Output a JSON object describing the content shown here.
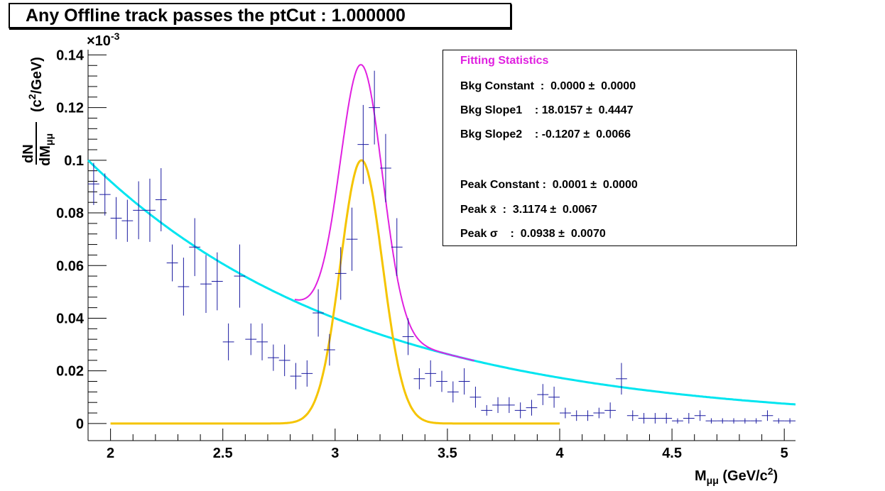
{
  "title": "Any Offline track passes the ptCut : 1.000000",
  "stats": {
    "header": "Fitting Statistics",
    "rows": [
      "Bkg Constant  :  0.0000 ±  0.0000",
      "Bkg Slope1    : 18.0157 ±  0.4447",
      "Bkg Slope2    : -0.1207 ±  0.0066",
      "Peak Constant :  0.0001 ±  0.0000",
      "Peak x̄  :  3.1174 ±  0.0067",
      "Peak σ    :  0.0938 ±  0.0070"
    ]
  },
  "colors": {
    "data": "#1a1aa0",
    "background_fit": "#00e5f0",
    "total_fit": "#e020e0",
    "peak_fit": "#f5c400",
    "axes": "#000000"
  },
  "chart_data": {
    "type": "scatter",
    "title": "Any Offline track passes the ptCut : 1.000000",
    "xlabel": "M_{μμ} (GeV/c^{2})",
    "ylabel": "dN/dM_{μμ} (c^{2}/GeV)",
    "y_exponent_label": "×10^{-3}",
    "xlim": [
      1.9,
      5.05
    ],
    "ylim": [
      -0.0065,
      0.142
    ],
    "x_ticks": [
      "2",
      "2.5",
      "3",
      "3.5",
      "4",
      "4.5",
      "5"
    ],
    "y_ticks": [
      "0",
      "0.02",
      "0.04",
      "0.06",
      "0.08",
      "0.1",
      "0.12",
      "0.14"
    ],
    "bin_half_width": 0.025,
    "series": [
      {
        "points": [
          [
            1.925,
            0.091,
            0.008
          ],
          [
            1.975,
            0.087,
            0.008
          ],
          [
            2.025,
            0.078,
            0.008
          ],
          [
            2.075,
            0.077,
            0.008
          ],
          [
            2.125,
            0.081,
            0.011
          ],
          [
            2.175,
            0.081,
            0.012
          ],
          [
            2.225,
            0.085,
            0.012
          ],
          [
            2.275,
            0.061,
            0.007
          ],
          [
            2.325,
            0.052,
            0.011
          ],
          [
            2.375,
            0.067,
            0.011
          ],
          [
            2.425,
            0.053,
            0.011
          ],
          [
            2.475,
            0.054,
            0.011
          ],
          [
            2.525,
            0.031,
            0.007
          ],
          [
            2.575,
            0.056,
            0.012
          ],
          [
            2.625,
            0.032,
            0.006
          ],
          [
            2.675,
            0.031,
            0.007
          ],
          [
            2.725,
            0.025,
            0.005
          ],
          [
            2.775,
            0.024,
            0.006
          ],
          [
            2.825,
            0.018,
            0.005
          ],
          [
            2.875,
            0.019,
            0.005
          ],
          [
            2.925,
            0.042,
            0.009
          ],
          [
            2.975,
            0.028,
            0.006
          ],
          [
            3.025,
            0.057,
            0.01
          ],
          [
            3.075,
            0.07,
            0.012
          ],
          [
            3.125,
            0.106,
            0.015
          ],
          [
            3.175,
            0.12,
            0.014
          ],
          [
            3.225,
            0.097,
            0.013
          ],
          [
            3.275,
            0.067,
            0.011
          ],
          [
            3.325,
            0.033,
            0.007
          ],
          [
            3.375,
            0.017,
            0.004
          ],
          [
            3.425,
            0.019,
            0.005
          ],
          [
            3.475,
            0.016,
            0.004
          ],
          [
            3.525,
            0.012,
            0.004
          ],
          [
            3.575,
            0.016,
            0.005
          ],
          [
            3.625,
            0.01,
            0.004
          ],
          [
            3.675,
            0.005,
            0.002
          ],
          [
            3.725,
            0.007,
            0.003
          ],
          [
            3.775,
            0.007,
            0.003
          ],
          [
            3.825,
            0.005,
            0.003
          ],
          [
            3.875,
            0.006,
            0.003
          ],
          [
            3.925,
            0.011,
            0.004
          ],
          [
            3.975,
            0.01,
            0.004
          ],
          [
            4.025,
            0.004,
            0.002
          ],
          [
            4.075,
            0.003,
            0.002
          ],
          [
            4.125,
            0.003,
            0.002
          ],
          [
            4.175,
            0.004,
            0.002
          ],
          [
            4.225,
            0.005,
            0.003
          ],
          [
            4.275,
            0.017,
            0.006
          ],
          [
            4.325,
            0.003,
            0.002
          ],
          [
            4.375,
            0.002,
            0.002
          ],
          [
            4.425,
            0.002,
            0.002
          ],
          [
            4.475,
            0.002,
            0.002
          ],
          [
            4.525,
            0.001,
            0.001
          ],
          [
            4.575,
            0.002,
            0.002
          ],
          [
            4.625,
            0.003,
            0.002
          ],
          [
            4.675,
            0.001,
            0.001
          ],
          [
            4.725,
            0.001,
            0.001
          ],
          [
            4.775,
            0.001,
            0.001
          ],
          [
            4.825,
            0.001,
            0.001
          ],
          [
            4.875,
            0.001,
            0.001
          ],
          [
            4.925,
            0.003,
            0.002
          ],
          [
            4.975,
            0.001,
            0.001
          ],
          [
            5.025,
            0.001,
            0.001
          ]
        ]
      }
    ],
    "fits": {
      "background": {
        "amplitude": 0.1,
        "start": 1.9,
        "decay": 1.2,
        "x_range": [
          1.9,
          5.05
        ]
      },
      "peak": {
        "constant": 0.1,
        "mean": 3.1174,
        "sigma": 0.0938,
        "x_range": [
          2.0,
          4.0
        ]
      },
      "total_x_range": [
        2.82,
        3.62
      ]
    }
  }
}
